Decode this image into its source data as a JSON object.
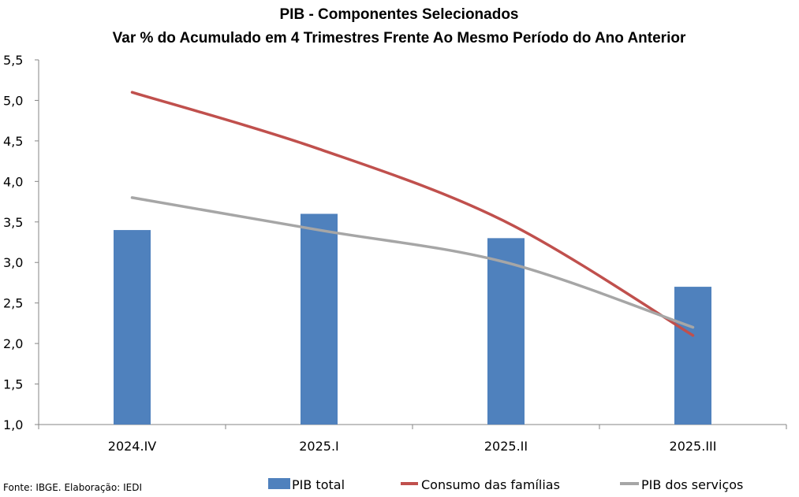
{
  "chart_data": {
    "type": "bar",
    "title": "PIB - Componentes Selecionados",
    "subtitle": "Var % do Acumulado em 4 Trimestres Frente Ao Mesmo Período do Ano Anterior",
    "categories": [
      "2024.IV",
      "2025.I",
      "2025.II",
      "2025.III"
    ],
    "series": [
      {
        "name": "PIB total",
        "kind": "bar",
        "color": "#4F81BD",
        "values": [
          3.4,
          3.6,
          3.3,
          2.7
        ]
      },
      {
        "name": "Consumo das famílias",
        "kind": "line",
        "color": "#C0504D",
        "values": [
          5.1,
          4.4,
          3.5,
          2.1
        ]
      },
      {
        "name": "PIB dos serviços",
        "kind": "line",
        "color": "#A6A6A6",
        "values": [
          3.8,
          3.4,
          3.0,
          2.2
        ]
      }
    ],
    "ylim": [
      1.0,
      5.5
    ],
    "yticks": [
      "1,0",
      "1,5",
      "2,0",
      "2,5",
      "3,0",
      "3,5",
      "4,0",
      "4,5",
      "5,0",
      "5,5"
    ],
    "ytick_values": [
      1.0,
      1.5,
      2.0,
      2.5,
      3.0,
      3.5,
      4.0,
      4.5,
      5.0,
      5.5
    ],
    "xlabel": "",
    "ylabel": "",
    "grid": false,
    "legend_position": "bottom",
    "axis_color": "#868686"
  },
  "source_note": "Fonte: IBGE. Elaboração: IEDI"
}
